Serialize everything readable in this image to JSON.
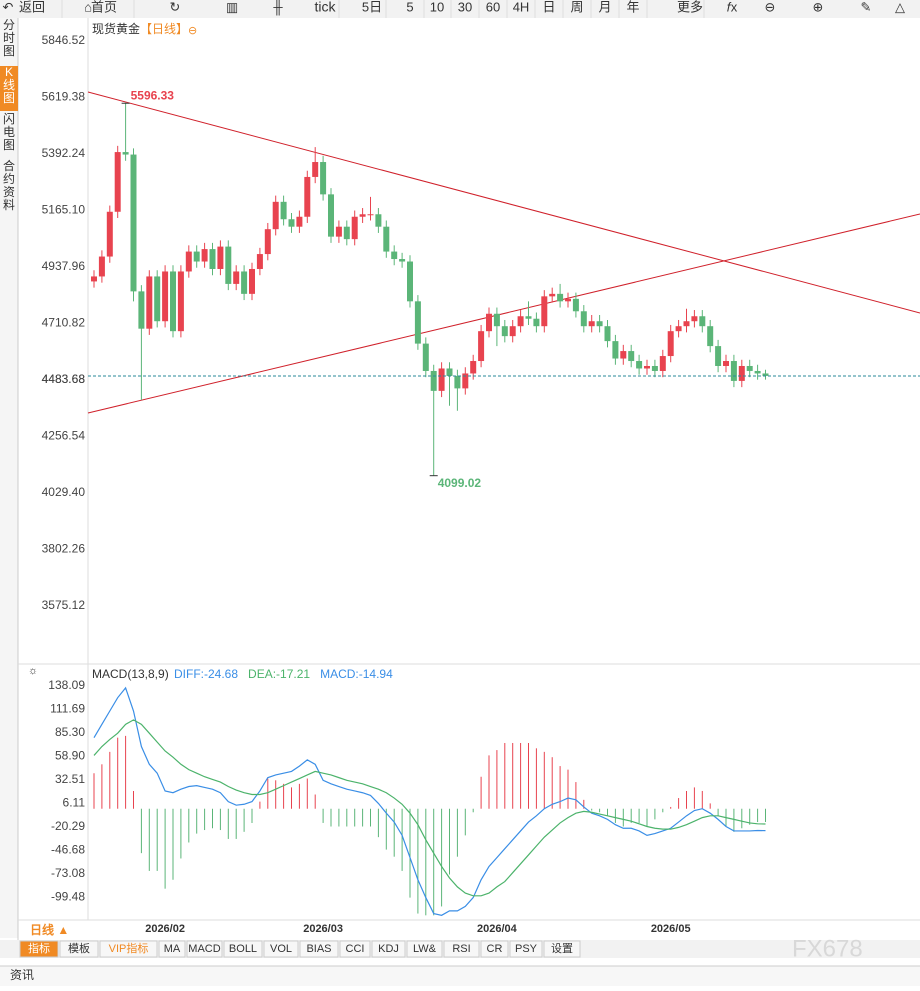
{
  "ui": {
    "toolbar": [
      "返回",
      "首页",
      "tick",
      "5日",
      "5",
      "10",
      "30",
      "60",
      "4H",
      "日",
      "周",
      "月",
      "年",
      "更多"
    ],
    "side_tabs": [
      "分时图",
      "K线图",
      "闪电图",
      "合约资料"
    ],
    "period_button": "日线 ▲",
    "indicator_tabs": [
      "指标",
      "模板",
      "VIP指标",
      "MA",
      "MACD",
      "BOLL",
      "VOL",
      "BIAS",
      "CCI",
      "KDJ",
      "LW&",
      "RSI",
      "CR",
      "PSY",
      "设置"
    ],
    "footer": "资讯",
    "watermark": "FX678"
  },
  "chart_data": [
    {
      "type": "candlestick",
      "title": "现货黄金",
      "period": "【日线】",
      "up_color": "#e8434f",
      "down_color": "#5bb578",
      "grid": false,
      "categories": [
        null,
        null,
        null,
        null,
        null,
        null,
        null,
        null,
        null,
        "2026/02",
        null,
        null,
        null,
        null,
        null,
        null,
        null,
        null,
        null,
        null,
        null,
        null,
        null,
        null,
        null,
        null,
        null,
        null,
        null,
        "2026/03",
        null,
        null,
        null,
        null,
        null,
        null,
        null,
        null,
        null,
        null,
        null,
        null,
        null,
        null,
        null,
        null,
        null,
        null,
        null,
        null,
        null,
        "2026/04",
        null,
        null,
        null,
        null,
        null,
        null,
        null,
        null,
        null,
        null,
        null,
        null,
        null,
        null,
        null,
        null,
        null,
        null,
        null,
        null,
        null,
        "2026/05",
        null,
        null,
        null,
        null,
        null,
        null,
        null,
        null,
        null,
        null,
        null,
        null
      ],
      "open": [
        4880,
        4900,
        4980,
        5160,
        5400,
        5390,
        4840,
        4690,
        4900,
        4720,
        4920,
        4680,
        4920,
        5000,
        4960,
        5010,
        4930,
        5020,
        4870,
        4920,
        4830,
        4930,
        4990,
        5090,
        5200,
        5130,
        5100,
        5140,
        5300,
        5360,
        5230,
        5060,
        5100,
        5050,
        5140,
        5150,
        5150,
        5100,
        5000,
        4970,
        4960,
        4800,
        4630,
        4520,
        4440,
        4530,
        4500,
        4450,
        4510,
        4560,
        4680,
        4750,
        4700,
        4660,
        4700,
        4740,
        4730,
        4700,
        4820,
        4830,
        4800,
        4810,
        4760,
        4700,
        4720,
        4700,
        4640,
        4570,
        4600,
        4560,
        4530,
        4540,
        4520,
        4580,
        4680,
        4700,
        4720,
        4740,
        4700,
        4620,
        4540,
        4560,
        4480,
        4540,
        4520,
        4510
      ],
      "high": [
        4925,
        5005,
        5185,
        5425,
        5596.33,
        5415,
        4865,
        4925,
        4925,
        4945,
        4945,
        4945,
        5025,
        5025,
        5035,
        5035,
        5045,
        5045,
        4945,
        4945,
        4955,
        5015,
        5115,
        5225,
        5225,
        5155,
        5165,
        5325,
        5420,
        5385,
        5255,
        5125,
        5125,
        5165,
        5175,
        5220,
        5175,
        5125,
        5025,
        4995,
        4985,
        4825,
        4655,
        4545,
        4555,
        4555,
        4525,
        4535,
        4585,
        4705,
        4775,
        4775,
        4725,
        4725,
        4765,
        4800,
        4755,
        4845,
        4855,
        4870,
        4835,
        4835,
        4785,
        4745,
        4745,
        4725,
        4665,
        4625,
        4625,
        4585,
        4565,
        4565,
        4605,
        4705,
        4725,
        4770,
        4765,
        4765,
        4725,
        4645,
        4585,
        4585,
        4565,
        4565,
        4545,
        4525
      ],
      "low": [
        4855,
        4875,
        4955,
        5135,
        5365,
        4800,
        4403,
        4665,
        4695,
        4695,
        4655,
        4655,
        4895,
        4935,
        4935,
        4905,
        4905,
        4845,
        4845,
        4805,
        4805,
        4905,
        4965,
        5065,
        5105,
        5075,
        5075,
        5115,
        5275,
        5205,
        5035,
        5035,
        5025,
        5025,
        5115,
        5125,
        5075,
        4975,
        4945,
        4935,
        4775,
        4605,
        4495,
        4099.02,
        4415,
        4380,
        4360,
        4425,
        4485,
        4535,
        4655,
        4620,
        4635,
        4635,
        4675,
        4705,
        4675,
        4675,
        4795,
        4775,
        4775,
        4735,
        4675,
        4675,
        4675,
        4615,
        4545,
        4545,
        4535,
        4505,
        4505,
        4495,
        4495,
        4555,
        4655,
        4675,
        4695,
        4675,
        4595,
        4515,
        4515,
        4455,
        4455,
        4495,
        4485,
        4485
      ],
      "close": [
        4900,
        4980,
        5160,
        5400,
        5390,
        4840,
        4690,
        4900,
        4720,
        4920,
        4680,
        4920,
        5000,
        4960,
        5010,
        4930,
        5020,
        4870,
        4920,
        4830,
        4930,
        4990,
        5090,
        5200,
        5130,
        5100,
        5140,
        5300,
        5360,
        5230,
        5060,
        5100,
        5050,
        5140,
        5150,
        5150,
        5100,
        5000,
        4970,
        4960,
        4800,
        4630,
        4520,
        4440,
        4530,
        4500,
        4450,
        4510,
        4560,
        4680,
        4750,
        4700,
        4660,
        4700,
        4740,
        4730,
        4700,
        4820,
        4830,
        4800,
        4810,
        4760,
        4700,
        4720,
        4700,
        4640,
        4570,
        4600,
        4560,
        4530,
        4540,
        4520,
        4580,
        4680,
        4700,
        4720,
        4740,
        4700,
        4620,
        4540,
        4560,
        4480,
        4540,
        4520,
        4510,
        4500
      ],
      "ylim": [
        3350,
        5939
      ],
      "yticks": [
        5846.52,
        5619.38,
        5392.24,
        {
          "value": 5165.1,
          "label": "5165.10"
        },
        4937.96,
        4710.82,
        4483.68,
        4256.54,
        {
          "value": 4029.4,
          "label": "4029.40"
        },
        4483.68,
        3802.26,
        3575.12
      ]
    },
    {
      "type": "macd",
      "title": "MACD(13,8,9)",
      "legend": [
        "DIFF:-24.68",
        "DEA:-17.21",
        "MACD:-14.94"
      ],
      "up_color": "#e8434f",
      "down_color": "#5bb578",
      "series": [
        {
          "color": "#3a8ee6",
          "values": [
            80,
            95,
            110,
            125,
            136,
            110,
            70,
            50,
            40,
            20,
            18,
            22,
            25,
            26,
            24,
            22,
            18,
            8,
            4,
            5,
            8,
            20,
            35,
            38,
            40,
            42,
            48,
            55,
            50,
            32,
            28,
            25,
            22,
            20,
            18,
            15,
            6,
            -5,
            -15,
            -30,
            -55,
            -80,
            -100,
            -118,
            -120,
            -115,
            -115,
            -110,
            -100,
            -80,
            -65,
            -55,
            -45,
            -35,
            -25,
            -15,
            -8,
            0,
            5,
            8,
            12,
            10,
            2,
            -5,
            -8,
            -12,
            -18,
            -22,
            -22,
            -25,
            -30,
            -28,
            -25,
            -22,
            -15,
            -8,
            -2,
            0,
            -5,
            -12,
            -20,
            -25,
            -25,
            -25,
            -24.5,
            -24.68
          ]
        },
        {
          "color": "#4cb36b",
          "values": [
            60,
            70,
            78,
            85,
            95,
            100,
            95,
            85,
            75,
            65,
            58,
            50,
            44,
            40,
            36,
            33,
            30,
            25,
            21,
            18,
            16,
            16,
            18,
            22,
            26,
            30,
            34,
            38,
            42,
            40,
            38,
            35,
            32,
            30,
            28,
            25,
            22,
            18,
            12,
            5,
            -5,
            -18,
            -35,
            -50,
            -65,
            -78,
            -88,
            -95,
            -98,
            -98,
            -95,
            -88,
            -82,
            -72,
            -62,
            -52,
            -42,
            -32,
            -24,
            -16,
            -10,
            -5,
            -3,
            -4,
            -6,
            -8,
            -10,
            -12,
            -14,
            -17,
            -20,
            -22,
            -23,
            -23,
            -21,
            -18,
            -14,
            -10,
            -8,
            -8,
            -10,
            -12,
            -14,
            -16,
            -17,
            -17.21
          ]
        },
        {
          "values": [
            40,
            50,
            64,
            80,
            82,
            20,
            -50,
            -70,
            -70,
            -90,
            -80,
            -56,
            -38,
            -28,
            -24,
            -22,
            -24,
            -34,
            -34,
            -26,
            -16,
            8,
            34,
            32,
            28,
            24,
            28,
            34,
            16,
            -16,
            -20,
            -20,
            -20,
            -20,
            -20,
            -20,
            -32,
            -46,
            -54,
            -70,
            -100,
            -118,
            -120,
            -120,
            -110,
            -74,
            -54,
            -30,
            -4,
            36,
            60,
            66,
            74,
            74,
            74,
            74,
            68,
            64,
            58,
            48,
            44,
            30,
            10,
            -2,
            -4,
            -8,
            -16,
            -20,
            -16,
            -16,
            -20,
            -12,
            -4,
            2,
            12,
            20,
            24,
            20,
            6,
            -8,
            -20,
            -26,
            -22,
            -18,
            -15,
            -14.94
          ]
        }
      ],
      "ylim": [
        -123,
        158.4
      ],
      "yticks": [
        138.09,
        111.69,
        {
          "value": 85.3,
          "label": "85.30"
        },
        {
          "value": 58.9,
          "label": "58.90"
        },
        32.51,
        6.11,
        -20.29,
        -46.68,
        -73.08,
        -99.48
      ]
    }
  ]
}
